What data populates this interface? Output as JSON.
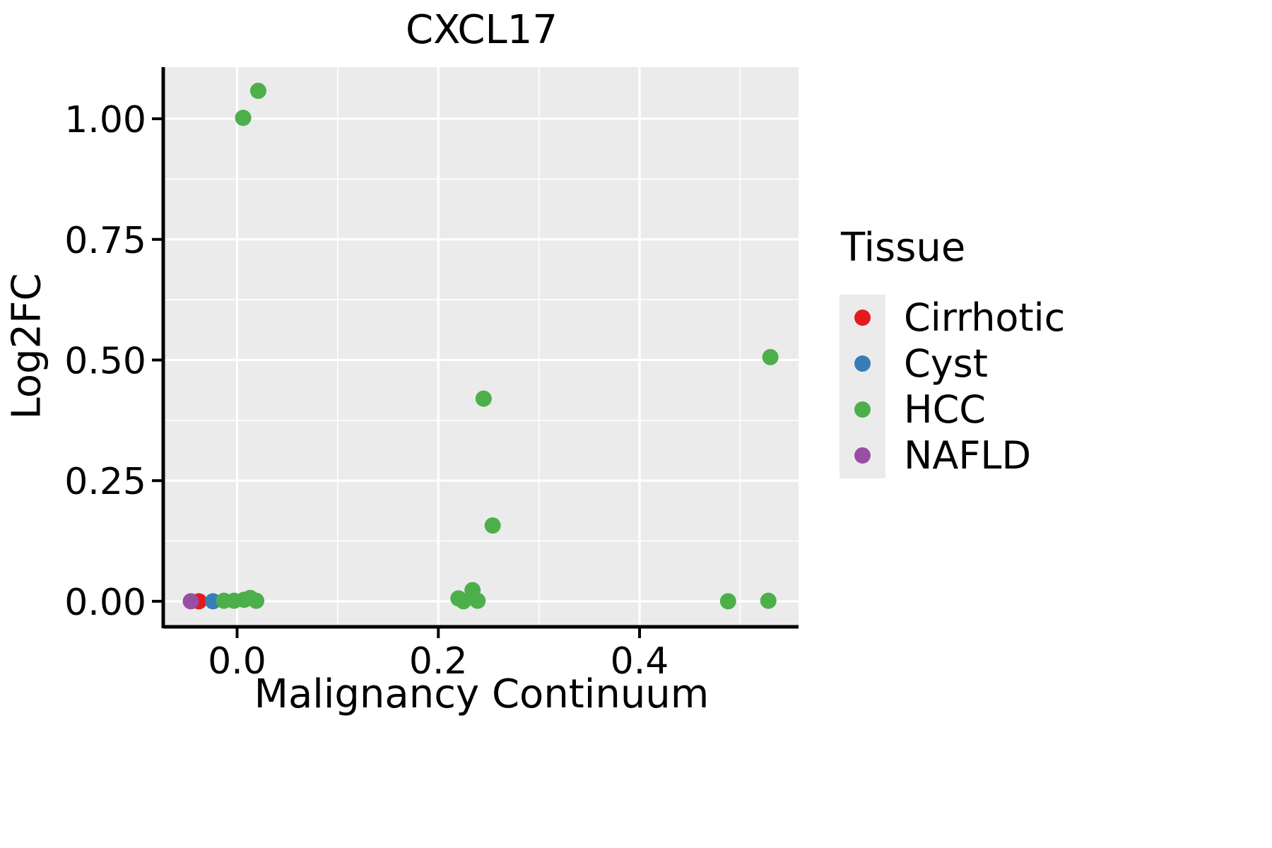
{
  "title": "CXCL17",
  "chart_data": {
    "type": "scatter",
    "title": "CXCL17",
    "xlabel": "Malignancy Continuum",
    "ylabel": "Log2FC",
    "xlim": [
      -0.072,
      0.558
    ],
    "ylim": [
      -0.05,
      1.107
    ],
    "x_ticks": [
      0.0,
      0.2,
      0.4
    ],
    "x_tick_labels": [
      "0.0",
      "0.2",
      "0.4"
    ],
    "x_minor_ticks": [
      0.1,
      0.3,
      0.5
    ],
    "y_ticks": [
      0.0,
      0.25,
      0.5,
      0.75,
      1.0
    ],
    "y_tick_labels": [
      "0.00",
      "0.25",
      "0.50",
      "0.75",
      "1.00"
    ],
    "y_minor_ticks": [
      0.125,
      0.375,
      0.625,
      0.875
    ],
    "grid": "major-and-minor-white-on-gray",
    "panel_background": "#EBEBEB",
    "legend_title": "Tissue",
    "legend_position": "right",
    "series": [
      {
        "name": "Cirrhotic",
        "color": "#E41A1C",
        "points": [
          [
            -0.038,
            0.0
          ]
        ]
      },
      {
        "name": "Cyst",
        "color": "#377EB8",
        "points": [
          [
            -0.024,
            0.0
          ]
        ]
      },
      {
        "name": "HCC",
        "color": "#4DAF4A",
        "points": [
          [
            0.006,
            1.002
          ],
          [
            0.021,
            1.058
          ],
          [
            0.245,
            0.42
          ],
          [
            0.53,
            0.506
          ],
          [
            0.254,
            0.157
          ],
          [
            -0.013,
            0.001
          ],
          [
            -0.003,
            0.001
          ],
          [
            0.007,
            0.003
          ],
          [
            0.013,
            0.007
          ],
          [
            0.019,
            0.001
          ],
          [
            0.22,
            0.006
          ],
          [
            0.225,
            0.0
          ],
          [
            0.234,
            0.023
          ],
          [
            0.239,
            0.001
          ],
          [
            0.488,
            0.0
          ],
          [
            0.528,
            0.001
          ]
        ]
      },
      {
        "name": "NAFLD",
        "color": "#984EA3",
        "points": [
          [
            -0.046,
            0.0
          ]
        ]
      }
    ]
  }
}
